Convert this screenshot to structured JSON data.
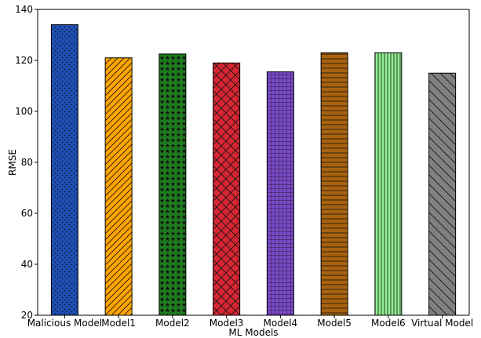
{
  "chart_data": {
    "type": "bar",
    "title": "",
    "xlabel": "ML Models",
    "ylabel": "RMSE",
    "ylim": [
      20,
      140
    ],
    "yticks": [
      20,
      40,
      60,
      80,
      100,
      120,
      140
    ],
    "grid": false,
    "categories": [
      "Malicious Model",
      "Model1",
      "Model2",
      "Model3",
      "Model4",
      "Model5",
      "Model6",
      "Virtual Model"
    ],
    "values": [
      134.0,
      121.0,
      122.5,
      119.0,
      115.5,
      123.0,
      123.0,
      115.0
    ],
    "bar_colors": [
      "#1f4fb4",
      "#ffa500",
      "#1e7b1e",
      "#d62733",
      "#7a4ac9",
      "#a8620d",
      "#90ee90",
      "#808080"
    ],
    "bar_patterns": [
      "dots",
      "diagonal-forward",
      "stars",
      "crosshatch",
      "grid",
      "horizontal",
      "vertical",
      "diagonal-back"
    ]
  }
}
